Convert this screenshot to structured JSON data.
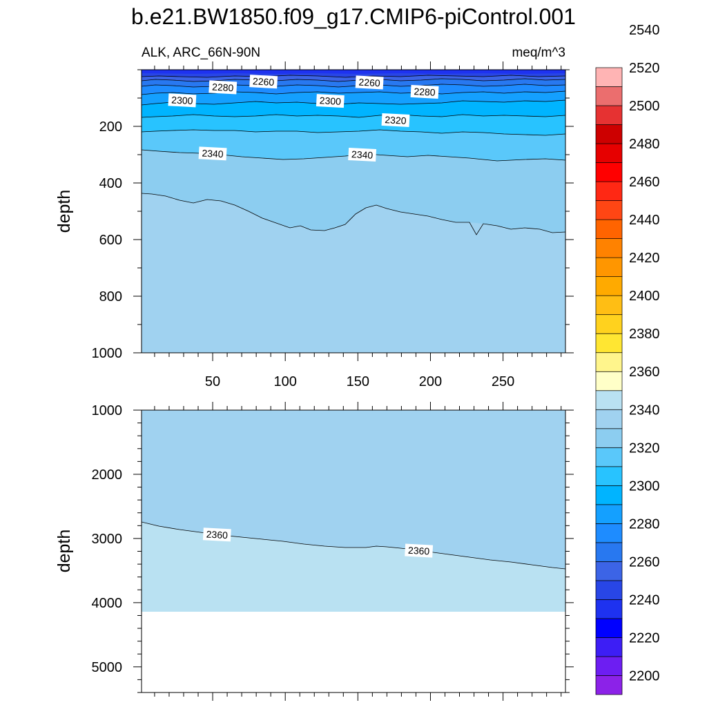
{
  "title": "b.e21.BW1850.f09_g17.CMIP6-piControl.001",
  "subtitle_left": "ALK, ARC_66N-90N",
  "subtitle_right": "meq/m^3",
  "chart_data": {
    "type": "contour",
    "x_ticks": [
      50,
      100,
      150,
      200,
      250
    ],
    "x_range": [
      1,
      293
    ],
    "panels": [
      {
        "name": "upper",
        "ylabel": "depth",
        "y_range": [
          0,
          1000
        ],
        "y_ticks": [
          200,
          400,
          600,
          800,
          1000
        ],
        "labels": [
          {
            "text": "2260",
            "x": 85,
            "y": 42
          },
          {
            "text": "2260",
            "x": 158,
            "y": 45
          },
          {
            "text": "2280",
            "x": 57,
            "y": 62
          },
          {
            "text": "2280",
            "x": 196,
            "y": 78
          },
          {
            "text": "2300",
            "x": 29,
            "y": 108
          },
          {
            "text": "2300",
            "x": 131,
            "y": 110
          },
          {
            "text": "2320",
            "x": 176,
            "y": 178
          },
          {
            "text": "2340",
            "x": 50,
            "y": 296
          },
          {
            "text": "2340",
            "x": 153,
            "y": 300
          }
        ]
      },
      {
        "name": "lower",
        "ylabel": "depth",
        "y_range": [
          1000,
          5400
        ],
        "y_ticks": [
          1000,
          2000,
          3000,
          4000,
          5000
        ],
        "labels": [
          {
            "text": "2360",
            "x": 53,
            "y": 2940
          },
          {
            "text": "2360",
            "x": 192,
            "y": 3190
          }
        ]
      }
    ],
    "colorbar": {
      "levels": [
        2200,
        2220,
        2240,
        2260,
        2280,
        2300,
        2320,
        2340,
        2360,
        2380,
        2400,
        2420,
        2440,
        2460,
        2480,
        2500,
        2520,
        2540
      ],
      "colors": [
        "#8c22e8",
        "#6d1ef2",
        "#3d1ef5",
        "#0000ff",
        "#1e32f0",
        "#2846e6",
        "#3c64e6",
        "#2878f0",
        "#1e8cff",
        "#14a0ff",
        "#00b4ff",
        "#28c3ff",
        "#5ac8fa",
        "#8ccdf0",
        "#a0d2f0",
        "#b9e1f2",
        "#ffffc8",
        "#fff58c",
        "#ffe632",
        "#ffd21e",
        "#ffbe14",
        "#ffaa00",
        "#ff9600",
        "#ff8200",
        "#ff6400",
        "#ff4614",
        "#ff2814",
        "#ff0000",
        "#e60000",
        "#cd0000",
        "#e63232",
        "#eb6e6e",
        "#ffb4b4"
      ]
    }
  }
}
